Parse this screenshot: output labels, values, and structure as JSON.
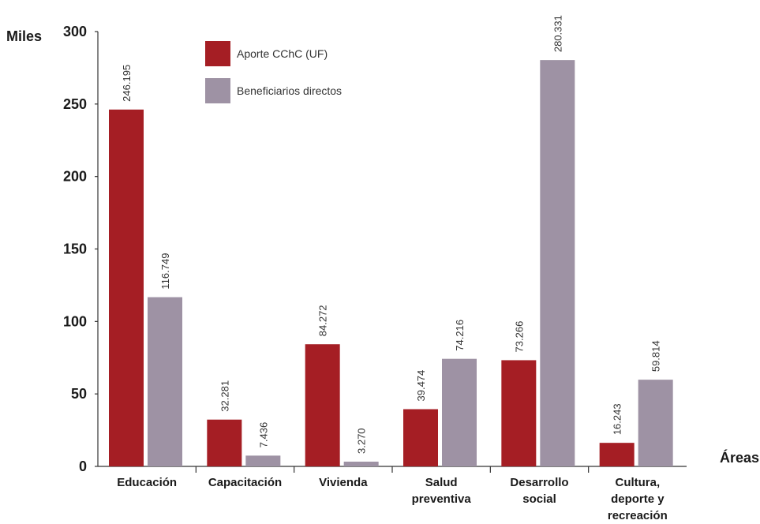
{
  "chart_data": {
    "type": "bar",
    "ylabel": "Miles",
    "xlabel": "Áreas",
    "ylim": [
      0,
      300
    ],
    "yticks": [
      0,
      50,
      100,
      150,
      200,
      250,
      300
    ],
    "categories": [
      [
        "Educación"
      ],
      [
        "Capacitación"
      ],
      [
        "Vivienda"
      ],
      [
        "Salud",
        "preventiva"
      ],
      [
        "Desarrollo",
        "social"
      ],
      [
        "Cultura,",
        "deporte y",
        "recreación"
      ]
    ],
    "series": [
      {
        "name": "Aporte CChC (UF)",
        "color": "#a51e24",
        "values": [
          246.195,
          32.281,
          84.272,
          39.474,
          73.266,
          16.243
        ],
        "labels": [
          "246.195",
          "32.281",
          "84.272",
          "39.474",
          "73.266",
          "16.243"
        ]
      },
      {
        "name": "Beneficiarios directos",
        "color": "#9e92a4",
        "values": [
          116.749,
          7.436,
          3.27,
          74.216,
          280.331,
          59.814
        ],
        "labels": [
          "116.749",
          "7.436",
          "3.270",
          "74.216",
          "280.331",
          "59.814"
        ]
      }
    ],
    "legend_position": "top-left",
    "grid": false
  }
}
